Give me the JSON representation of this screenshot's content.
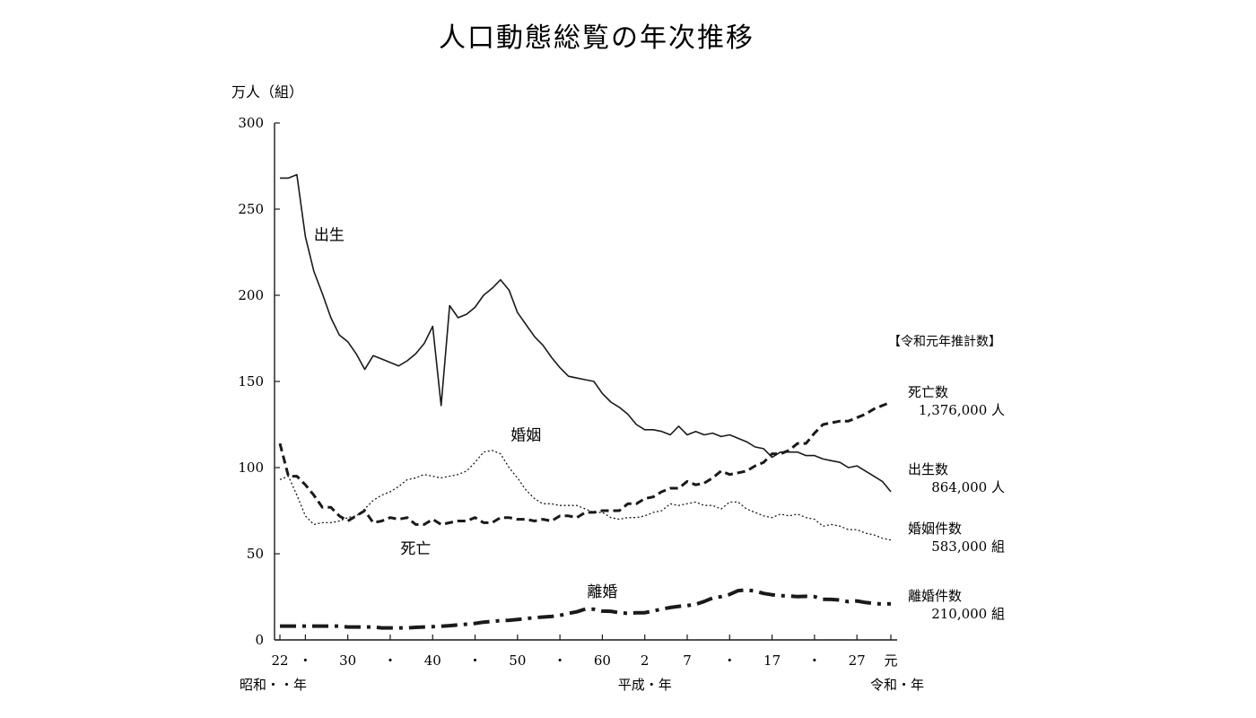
{
  "chart_data": {
    "type": "line",
    "title": "人口動態総覧の年次推移",
    "ylabel": "万人（組）",
    "ylim": [
      0,
      300
    ],
    "yticks": [
      "0",
      "50",
      "100",
      "150",
      "200",
      "250",
      "300"
    ],
    "x_tick_labels": [
      {
        "x": 1947,
        "label": "22"
      },
      {
        "x": 1950,
        "label": "・"
      },
      {
        "x": 1955,
        "label": "30"
      },
      {
        "x": 1960,
        "label": "・"
      },
      {
        "x": 1965,
        "label": "40"
      },
      {
        "x": 1970,
        "label": "・"
      },
      {
        "x": 1975,
        "label": "50"
      },
      {
        "x": 1980,
        "label": "・"
      },
      {
        "x": 1985,
        "label": "60"
      },
      {
        "x": 1990,
        "label": "2"
      },
      {
        "x": 1995,
        "label": "7"
      },
      {
        "x": 2000,
        "label": "・"
      },
      {
        "x": 2005,
        "label": "17"
      },
      {
        "x": 2010,
        "label": "・"
      },
      {
        "x": 2015,
        "label": "27"
      },
      {
        "x": 2019,
        "label": "元"
      }
    ],
    "era_labels": [
      {
        "x": 1947,
        "label": "昭和・・年"
      },
      {
        "x": 1990,
        "label": "平成・年"
      },
      {
        "x": 2020,
        "label": "令和・年"
      }
    ],
    "xlim": [
      1947,
      2019
    ],
    "years": [
      1947,
      1948,
      1949,
      1950,
      1951,
      1952,
      1953,
      1954,
      1955,
      1956,
      1957,
      1958,
      1959,
      1960,
      1961,
      1962,
      1963,
      1964,
      1965,
      1966,
      1967,
      1968,
      1969,
      1970,
      1971,
      1972,
      1973,
      1974,
      1975,
      1976,
      1977,
      1978,
      1979,
      1980,
      1981,
      1982,
      1983,
      1984,
      1985,
      1986,
      1987,
      1988,
      1989,
      1990,
      1991,
      1992,
      1993,
      1994,
      1995,
      1996,
      1997,
      1998,
      1999,
      2000,
      2001,
      2002,
      2003,
      2004,
      2005,
      2006,
      2007,
      2008,
      2009,
      2010,
      2011,
      2012,
      2013,
      2014,
      2015,
      2016,
      2017,
      2018,
      2019
    ],
    "series": [
      {
        "name": "出生",
        "style": "solid",
        "values": [
          268,
          268,
          270,
          234,
          214,
          201,
          187,
          177,
          173,
          166,
          157,
          165,
          163,
          161,
          159,
          162,
          166,
          172,
          182,
          136,
          194,
          187,
          189,
          193,
          200,
          204,
          209,
          203,
          190,
          183,
          176,
          171,
          164,
          158,
          153,
          152,
          151,
          150,
          143,
          138,
          135,
          131,
          125,
          122,
          122,
          121,
          119,
          124,
          119,
          121,
          119,
          120,
          118,
          119,
          117,
          115,
          112,
          111,
          106,
          109,
          109,
          109,
          107,
          107,
          105,
          104,
          103,
          100,
          101,
          98,
          95,
          92,
          86
        ]
      },
      {
        "name": "死亡",
        "style": "dashed",
        "values": [
          114,
          95,
          95,
          90,
          84,
          77,
          77,
          72,
          69,
          72,
          75,
          68,
          69,
          71,
          70,
          71,
          67,
          67,
          70,
          67,
          68,
          69,
          69,
          71,
          68,
          68,
          71,
          71,
          70,
          70,
          69,
          70,
          69,
          72,
          72,
          71,
          74,
          74,
          75,
          75,
          75,
          79,
          79,
          82,
          83,
          86,
          88,
          88,
          92,
          90,
          91,
          94,
          98,
          96,
          97,
          98,
          101,
          103,
          108,
          108,
          110,
          114,
          114,
          120,
          125,
          126,
          127,
          127,
          129,
          131,
          134,
          136,
          138
        ]
      },
      {
        "name": "婚姻",
        "style": "dotted",
        "values": [
          93,
          95,
          84,
          72,
          67,
          68,
          68,
          69,
          71,
          72,
          76,
          81,
          84,
          86,
          89,
          93,
          94,
          96,
          95,
          94,
          95,
          96,
          98,
          103,
          109,
          110,
          108,
          100,
          94,
          87,
          82,
          79,
          79,
          78,
          78,
          78,
          76,
          74,
          74,
          71,
          70,
          71,
          71,
          72,
          74,
          75,
          79,
          78,
          79,
          80,
          78,
          78,
          76,
          80,
          80,
          76,
          74,
          72,
          71,
          73,
          72,
          73,
          71,
          70,
          66,
          67,
          66,
          64,
          64,
          62,
          61,
          59,
          58
        ]
      },
      {
        "name": "離婚",
        "style": "dashdot",
        "values": [
          8,
          8,
          8,
          8,
          8,
          8,
          8,
          8,
          7.5,
          7.5,
          7.5,
          7.5,
          7,
          7,
          7,
          7,
          7.3,
          7.5,
          7.7,
          7.9,
          8.3,
          8.7,
          9.1,
          9.6,
          10.3,
          10.8,
          11.2,
          11.4,
          11.9,
          12.4,
          12.9,
          13.3,
          13.6,
          14.2,
          15.4,
          16.3,
          17.9,
          17.8,
          16.7,
          16.6,
          15.8,
          15.4,
          15.8,
          15.8,
          16.8,
          17.9,
          18.8,
          19.5,
          19.9,
          20.7,
          22.3,
          24.3,
          25.1,
          26.4,
          28.6,
          29.0,
          28.4,
          27.0,
          26.2,
          25.7,
          25.5,
          25.1,
          25.3,
          25.1,
          23.6,
          23.5,
          23.1,
          22.2,
          22.6,
          21.7,
          21.2,
          20.8,
          21.0
        ]
      }
    ],
    "series_labels": [
      {
        "text": "出生",
        "series": 0
      },
      {
        "text": "死亡",
        "series": 1
      },
      {
        "text": "婚姻",
        "series": 2
      },
      {
        "text": "離婚",
        "series": 3
      }
    ],
    "summary": {
      "heading": "【令和元年推計数】",
      "entries": [
        {
          "name": "死亡数",
          "value": "1,376,000 人"
        },
        {
          "name": "出生数",
          "value": "864,000 人"
        },
        {
          "name": "婚姻件数",
          "value": "583,000 組"
        },
        {
          "name": "離婚件数",
          "value": "210,000 組"
        }
      ]
    },
    "colors": {
      "line": "#1a1a1a",
      "background": "#ffffff"
    },
    "grid": false,
    "legend": "right"
  }
}
